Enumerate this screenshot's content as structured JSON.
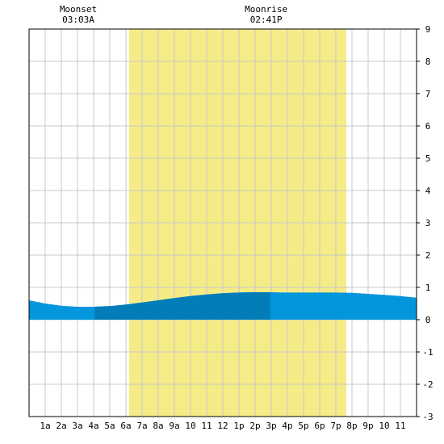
{
  "chart_data": {
    "type": "area",
    "title": "",
    "xlabel": "",
    "ylabel": "",
    "x_range_hours": [
      0,
      24
    ],
    "ylim": [
      -3,
      9
    ],
    "y_ticks": [
      "-3",
      "-2",
      "-1",
      "0",
      "1",
      "2",
      "3",
      "4",
      "5",
      "6",
      "7",
      "8",
      "9"
    ],
    "y_tick_values": [
      -3,
      -2,
      -1,
      0,
      1,
      2,
      3,
      4,
      5,
      6,
      7,
      8,
      9
    ],
    "x_ticks": [
      "1a",
      "2a",
      "3a",
      "4a",
      "5a",
      "6a",
      "7a",
      "8a",
      "9a",
      "10",
      "11",
      "12",
      "1p",
      "2p",
      "3p",
      "4p",
      "5p",
      "6p",
      "7p",
      "8p",
      "9p",
      "10",
      "11"
    ],
    "x_tick_hours": [
      1,
      2,
      3,
      4,
      5,
      6,
      7,
      8,
      9,
      10,
      11,
      12,
      13,
      14,
      15,
      16,
      17,
      18,
      19,
      20,
      21,
      22,
      23
    ],
    "grid": true,
    "daylight": {
      "start_hour": 6.2,
      "end_hour": 19.65,
      "color": "#f5eb87"
    },
    "moon_events": [
      {
        "label": "Moonset",
        "time": "03:03A",
        "hour": 3.05
      },
      {
        "label": "Moonrise",
        "time": "02:41P",
        "hour": 14.68
      }
    ],
    "series": [
      {
        "x": [
          0,
          1,
          2,
          3,
          4,
          5,
          6,
          7,
          8,
          9,
          10,
          11,
          12,
          13,
          14,
          15,
          16,
          17,
          18,
          19,
          20,
          21,
          22,
          23,
          24
        ],
        "values": [
          0.6,
          0.5,
          0.43,
          0.4,
          0.4,
          0.42,
          0.47,
          0.53,
          0.6,
          0.67,
          0.73,
          0.78,
          0.82,
          0.84,
          0.85,
          0.85,
          0.84,
          0.84,
          0.84,
          0.84,
          0.83,
          0.8,
          0.77,
          0.73,
          0.68
        ]
      }
    ],
    "highlight_band": {
      "start_hour": 4.05,
      "end_hour": 14.95
    },
    "colors": {
      "water": "#0496dc",
      "water_highlight": "#027db8",
      "grid": "#c8c8c8",
      "border": "#000000"
    }
  }
}
